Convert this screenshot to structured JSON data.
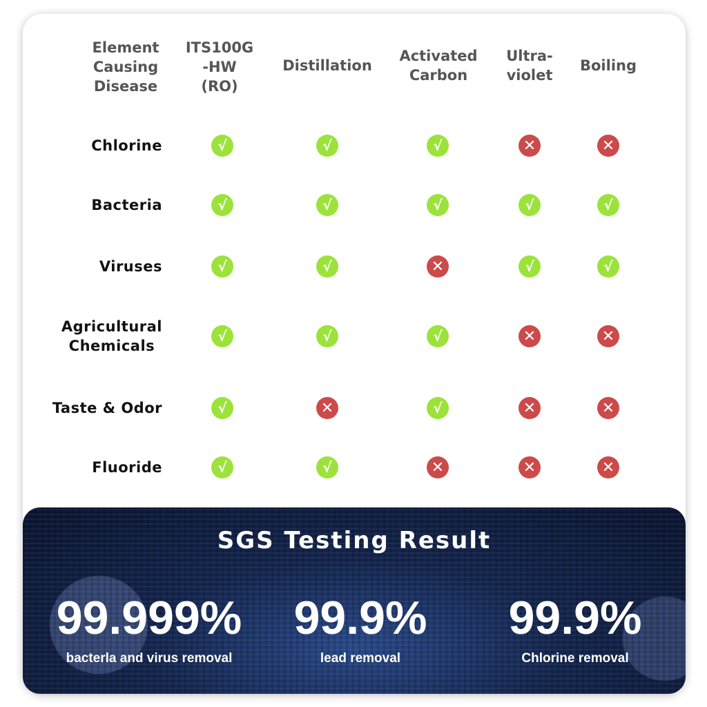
{
  "table": {
    "headers": [
      "Element\nCausing\nDisease",
      "ITS100G\n-HW\n(RO)",
      "Distillation",
      "Activated\nCarbon",
      "Ultra-\nviolet",
      "Boiling"
    ],
    "rows": [
      {
        "label": "Chlorine",
        "values": [
          true,
          true,
          true,
          false,
          false
        ]
      },
      {
        "label": "Bacteria",
        "values": [
          true,
          true,
          true,
          true,
          true
        ]
      },
      {
        "label": "Viruses",
        "values": [
          true,
          true,
          false,
          true,
          true
        ]
      },
      {
        "label": "Agricultural\nChemicals",
        "values": [
          true,
          true,
          true,
          false,
          false
        ]
      },
      {
        "label": "Taste & Odor",
        "values": [
          true,
          false,
          true,
          false,
          false
        ]
      },
      {
        "label": "Fluoride",
        "values": [
          true,
          true,
          false,
          false,
          false
        ]
      }
    ],
    "icons": {
      "yes": "check-icon",
      "no": "cross-icon"
    },
    "colors": {
      "yes": "#9be33a",
      "no": "#cc4a4a"
    }
  },
  "sgs": {
    "title": "SGS Testing Result",
    "stats": [
      {
        "value": "99.999%",
        "label": "bacterla and virus removal"
      },
      {
        "value": "99.9%",
        "label": "lead removal"
      },
      {
        "value": "99.9%",
        "label": "Chlorine removal"
      }
    ]
  }
}
